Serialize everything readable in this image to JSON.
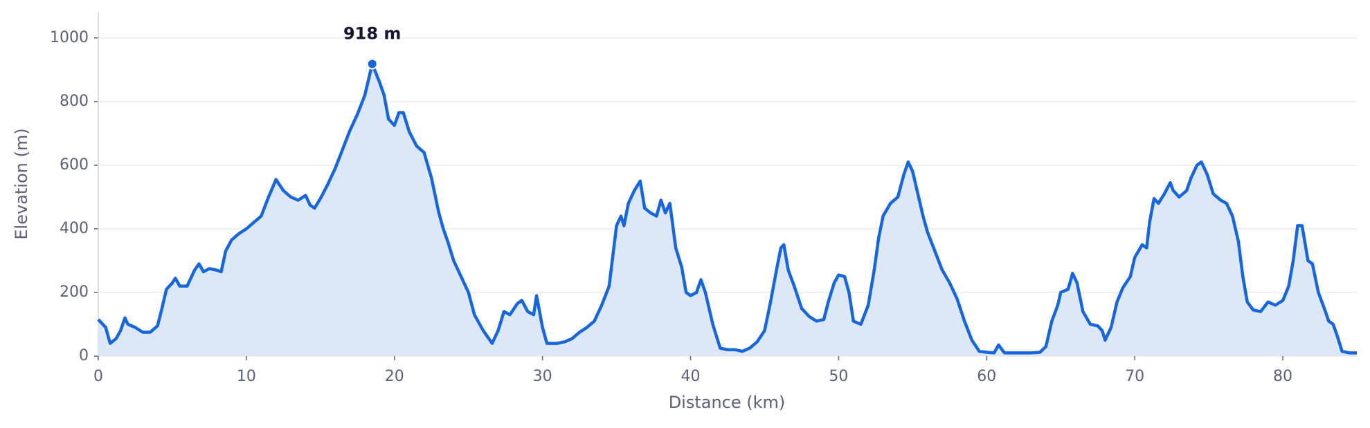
{
  "chart_data": {
    "type": "line",
    "x_label": "Distance (km)",
    "y_label": "Elevation (m)",
    "color": "#1766dc",
    "fill": "#dce7f8",
    "grid": true,
    "xlim": [
      0,
      85
    ],
    "xticks": [
      0,
      10,
      20,
      30,
      40,
      50,
      60,
      70,
      80
    ],
    "ylim": [
      0,
      1080
    ],
    "yticks": [
      0,
      200,
      400,
      600,
      800,
      1000
    ],
    "annotations": [
      {
        "x": 18.5,
        "y": 918,
        "text": "918 m"
      }
    ],
    "x": [
      0,
      0.5,
      0.8,
      1.2,
      1.5,
      1.8,
      2.0,
      2.5,
      3.0,
      3.5,
      4.0,
      4.3,
      4.6,
      5.0,
      5.2,
      5.5,
      6.0,
      6.5,
      6.8,
      7.1,
      7.5,
      8.0,
      8.3,
      8.6,
      9.0,
      9.5,
      10,
      10.5,
      11,
      11.5,
      12,
      12.5,
      13,
      13.5,
      14,
      14.3,
      14.6,
      15,
      15.5,
      16,
      16.5,
      17,
      17.5,
      18,
      18.5,
      19,
      19.3,
      19.6,
      20,
      20.3,
      20.6,
      21,
      21.5,
      22,
      22.5,
      23,
      23.3,
      23.6,
      24,
      24.5,
      25,
      25.4,
      26,
      26.6,
      27,
      27.4,
      27.8,
      28.3,
      28.6,
      29,
      29.4,
      29.6,
      30,
      30.3,
      31,
      31.5,
      32,
      32.5,
      33,
      33.5,
      34,
      34.5,
      35,
      35.3,
      35.5,
      35.8,
      36.2,
      36.6,
      36.9,
      37.3,
      37.7,
      38,
      38.3,
      38.6,
      39,
      39.4,
      39.7,
      40,
      40.4,
      40.7,
      41,
      41.5,
      42,
      42.5,
      43,
      43.5,
      44,
      44.5,
      45,
      45.4,
      45.8,
      46.1,
      46.3,
      46.6,
      47,
      47.5,
      48,
      48.5,
      49,
      49.3,
      49.7,
      50,
      50.4,
      50.7,
      51,
      51.5,
      52,
      52.4,
      52.7,
      53,
      53.5,
      54,
      54.4,
      54.7,
      55,
      55.3,
      55.7,
      56,
      56.5,
      57,
      57.5,
      58,
      58.5,
      59,
      59.5,
      60,
      60.5,
      60.8,
      61.2,
      62,
      63,
      63.6,
      64,
      64.4,
      64.8,
      65,
      65.5,
      65.8,
      66.1,
      66.5,
      67,
      67.5,
      67.8,
      68,
      68.4,
      68.8,
      69.2,
      69.7,
      70,
      70.5,
      70.8,
      71,
      71.3,
      71.6,
      72,
      72.4,
      72.6,
      73,
      73.5,
      73.8,
      74.2,
      74.5,
      74.9,
      75.3,
      75.8,
      76.2,
      76.6,
      77,
      77.3,
      77.6,
      78,
      78.5,
      79,
      79.5,
      80,
      80.4,
      80.7,
      81,
      81.3,
      81.7,
      82,
      82.4,
      82.8,
      83.1,
      83.4,
      83.7,
      84,
      84.5,
      85
    ],
    "values": [
      115,
      90,
      40,
      55,
      80,
      120,
      100,
      90,
      75,
      75,
      95,
      150,
      210,
      230,
      245,
      220,
      220,
      270,
      290,
      265,
      275,
      270,
      265,
      330,
      365,
      385,
      400,
      420,
      440,
      500,
      555,
      520,
      500,
      490,
      505,
      475,
      465,
      495,
      540,
      590,
      650,
      710,
      760,
      820,
      918,
      860,
      820,
      745,
      725,
      765,
      765,
      705,
      660,
      640,
      560,
      450,
      400,
      360,
      300,
      250,
      200,
      130,
      80,
      40,
      80,
      140,
      130,
      165,
      175,
      140,
      130,
      190,
      90,
      40,
      40,
      45,
      55,
      75,
      90,
      110,
      160,
      220,
      410,
      440,
      410,
      480,
      520,
      550,
      465,
      450,
      440,
      490,
      450,
      480,
      340,
      280,
      200,
      190,
      200,
      240,
      200,
      100,
      25,
      20,
      20,
      15,
      25,
      45,
      80,
      170,
      270,
      340,
      350,
      270,
      220,
      150,
      125,
      110,
      115,
      170,
      230,
      255,
      250,
      200,
      110,
      100,
      160,
      270,
      370,
      440,
      480,
      500,
      570,
      610,
      580,
      520,
      440,
      390,
      330,
      270,
      230,
      180,
      110,
      50,
      15,
      12,
      10,
      35,
      10,
      10,
      10,
      12,
      30,
      110,
      160,
      200,
      210,
      260,
      230,
      140,
      100,
      95,
      80,
      50,
      90,
      170,
      215,
      250,
      310,
      350,
      340,
      420,
      495,
      480,
      510,
      545,
      520,
      500,
      520,
      560,
      600,
      610,
      570,
      510,
      490,
      480,
      440,
      360,
      250,
      170,
      145,
      140,
      170,
      160,
      175,
      220,
      300,
      410,
      410,
      300,
      290,
      200,
      150,
      110,
      100,
      60,
      15,
      10,
      10
    ]
  }
}
